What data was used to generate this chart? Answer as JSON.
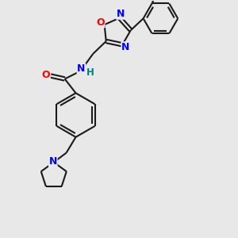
{
  "bg_color": "#e8e8e8",
  "bond_color": "#1a1a1a",
  "atom_colors": {
    "N": "#0000ff",
    "O": "#ff0000",
    "H": "#008080",
    "C": "#1a1a1a"
  },
  "figsize": [
    3.0,
    3.0
  ],
  "dpi": 100
}
